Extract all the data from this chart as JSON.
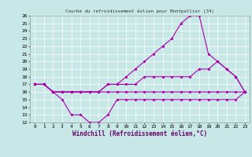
{
  "title": "Courbe du refroidissement éolien pour Montpellier (34)",
  "xlabel": "Windchill (Refroidissement éolien,°C)",
  "xlim": [
    -0.5,
    23.5
  ],
  "ylim": [
    12,
    26
  ],
  "xticks": [
    0,
    1,
    2,
    3,
    4,
    5,
    6,
    7,
    8,
    9,
    10,
    11,
    12,
    13,
    14,
    15,
    16,
    17,
    18,
    19,
    20,
    21,
    22,
    23
  ],
  "yticks": [
    12,
    13,
    14,
    15,
    16,
    17,
    18,
    19,
    20,
    21,
    22,
    23,
    24,
    25,
    26
  ],
  "bg_color": "#c8e8e8",
  "line_color": "#aa00aa",
  "grid_color": "#ffffff",
  "line1_y": [
    17,
    17,
    16,
    15,
    13,
    13,
    12,
    12,
    13,
    15,
    15,
    15,
    15,
    15,
    15,
    15,
    15,
    15,
    15,
    15,
    15,
    15,
    15,
    16
  ],
  "line2_y": [
    17,
    17,
    16,
    16,
    16,
    16,
    16,
    16,
    16,
    16,
    16,
    16,
    16,
    16,
    16,
    16,
    16,
    16,
    16,
    16,
    16,
    16,
    16,
    16
  ],
  "line3_y": [
    17,
    17,
    16,
    16,
    16,
    16,
    16,
    16,
    17,
    17,
    17,
    17,
    18,
    18,
    18,
    18,
    18,
    18,
    19,
    19,
    20,
    19,
    18,
    16
  ],
  "line4_y": [
    17,
    17,
    16,
    16,
    16,
    16,
    16,
    16,
    17,
    17,
    18,
    19,
    20,
    21,
    22,
    23,
    25,
    26,
    26,
    21,
    20,
    19,
    18,
    16
  ]
}
